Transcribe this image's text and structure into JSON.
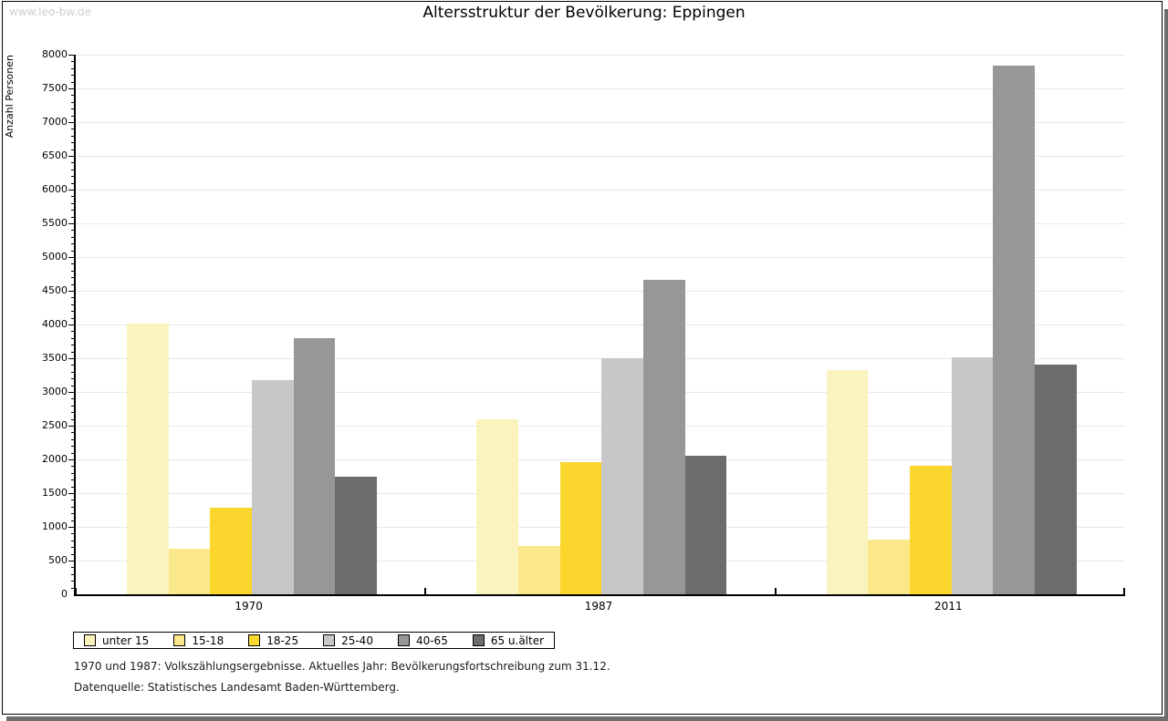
{
  "page": {
    "watermark": "www.leo-bw.de",
    "title": "Altersstruktur der Bevölkerung: Eppingen",
    "footnote_line1": "1970 und 1987: Volkszählungsergebnisse. Aktuelles Jahr: Bevölkerungsfortschreibung zum 31.12.",
    "footnote_line2": "Datenquelle: Statistisches Landesamt Baden-Württemberg."
  },
  "chart_data": {
    "type": "bar",
    "title": "Altersstruktur der Bevölkerung: Eppingen",
    "ylabel": "Anzahl Personen",
    "xlabel": "",
    "ylim": [
      0,
      8000
    ],
    "ytick_step": 500,
    "yticks": [
      0,
      500,
      1000,
      1500,
      2000,
      2500,
      3000,
      3500,
      4000,
      4500,
      5000,
      5500,
      6000,
      6500,
      7000,
      7500,
      8000
    ],
    "minor_tick_step": 100,
    "grid": true,
    "legend_position": "bottom",
    "categories": [
      "1970",
      "1987",
      "2011"
    ],
    "series": [
      {
        "name": "unter 15",
        "color": "#FAF3BE",
        "values": [
          4020,
          2600,
          3320
        ]
      },
      {
        "name": "15-18",
        "color": "#FBE88A",
        "values": [
          680,
          710,
          810
        ]
      },
      {
        "name": "18-25",
        "color": "#FBD72E",
        "values": [
          1280,
          1960,
          1900
        ]
      },
      {
        "name": "25-40",
        "color": "#C7C7C7",
        "values": [
          3170,
          3500,
          3520
        ]
      },
      {
        "name": "40-65",
        "color": "#979797",
        "values": [
          3800,
          4660,
          7840
        ]
      },
      {
        "name": "65 u.älter",
        "color": "#6C6C6C",
        "values": [
          1740,
          2050,
          3400
        ]
      }
    ],
    "grid_color": "#e8e8e8",
    "axis_color": "#000000"
  }
}
